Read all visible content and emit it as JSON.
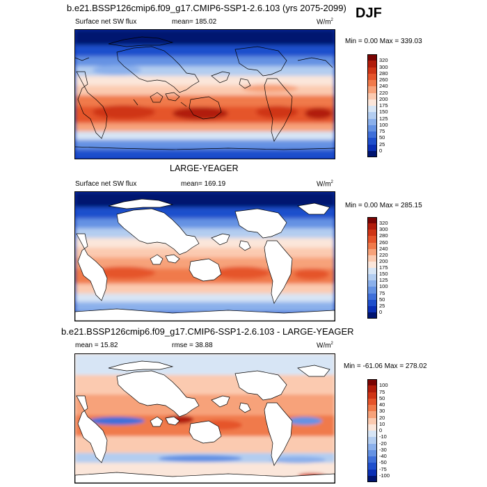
{
  "panel1": {
    "title": "b.e21.BSSP126cmip6.f09_g17.CMIP6-SSP1-2.6.103 (yrs 2075-2099)",
    "season": "DJF",
    "var_label": "Surface net SW flux",
    "stat_label": "mean= 185.02",
    "units_base": "W/m",
    "units_exp": "2",
    "minmax": "Min =   0.00 Max = 339.03"
  },
  "panel2": {
    "title": "LARGE-YEAGER",
    "var_label": "Surface net SW flux",
    "stat_label": "mean= 169.19",
    "units_base": "W/m",
    "units_exp": "2",
    "minmax": "Min =   0.00 Max = 285.15"
  },
  "panel3": {
    "title": "b.e21.BSSP126cmip6.f09_g17.CMIP6-SSP1-2.6.103 - LARGE-YEAGER",
    "mean_label": "mean =  15.82",
    "rmse_label": "rmse =  38.88",
    "units_base": "W/m",
    "units_exp": "2",
    "minmax": "Min = -61.06 Max = 278.02"
  },
  "chart_data": [
    {
      "type": "heatmap",
      "title": "b.e21.BSSP126cmip6.f09_g17.CMIP6-SSP1-2.6.103 (yrs 2075-2099)",
      "variable": "Surface net SW flux",
      "season": "DJF",
      "mean": 185.02,
      "min": 0.0,
      "max": 339.03,
      "units": "W/m2",
      "colorbar_levels": [
        "320",
        "300",
        "280",
        "260",
        "240",
        "220",
        "200",
        "175",
        "150",
        "125",
        "100",
        "75",
        "50",
        "25",
        "0"
      ],
      "colorbar_colors": [
        "#7a0403",
        "#b11c0b",
        "#cf3516",
        "#e5542b",
        "#f07a4b",
        "#f7a27a",
        "#fbcab0",
        "#fbe6da",
        "#d7e5f5",
        "#b3cdf0",
        "#8bb0eb",
        "#6592e3",
        "#3f6fd9",
        "#1f4fcc",
        "#0a2fb4",
        "#001470"
      ]
    },
    {
      "type": "heatmap",
      "title": "LARGE-YEAGER",
      "variable": "Surface net SW flux",
      "mean": 169.19,
      "min": 0.0,
      "max": 285.15,
      "units": "W/m2",
      "colorbar_levels": [
        "320",
        "300",
        "280",
        "260",
        "240",
        "220",
        "200",
        "175",
        "150",
        "125",
        "100",
        "75",
        "50",
        "25",
        "0"
      ],
      "colorbar_colors": [
        "#7a0403",
        "#b11c0b",
        "#cf3516",
        "#e5542b",
        "#f07a4b",
        "#f7a27a",
        "#fbcab0",
        "#fbe6da",
        "#d7e5f5",
        "#b3cdf0",
        "#8bb0eb",
        "#6592e3",
        "#3f6fd9",
        "#1f4fcc",
        "#0a2fb4",
        "#001470"
      ]
    },
    {
      "type": "heatmap",
      "title": "b.e21.BSSP126cmip6.f09_g17.CMIP6-SSP1-2.6.103 - LARGE-YEAGER",
      "mean": 15.82,
      "rmse": 38.88,
      "min": -61.06,
      "max": 278.02,
      "units": "W/m2",
      "colorbar_levels": [
        "100",
        "75",
        "50",
        "40",
        "30",
        "20",
        "10",
        "0",
        "-10",
        "-20",
        "-30",
        "-40",
        "-50",
        "-75",
        "-100"
      ],
      "colorbar_colors": [
        "#7a0403",
        "#b11c0b",
        "#cf3516",
        "#e5542b",
        "#f07a4b",
        "#f7a27a",
        "#fbcab0",
        "#fbe6da",
        "#d7e5f5",
        "#b3cdf0",
        "#8bb0eb",
        "#6592e3",
        "#3f6fd9",
        "#1f4fcc",
        "#0a2fb4",
        "#001470"
      ]
    }
  ]
}
